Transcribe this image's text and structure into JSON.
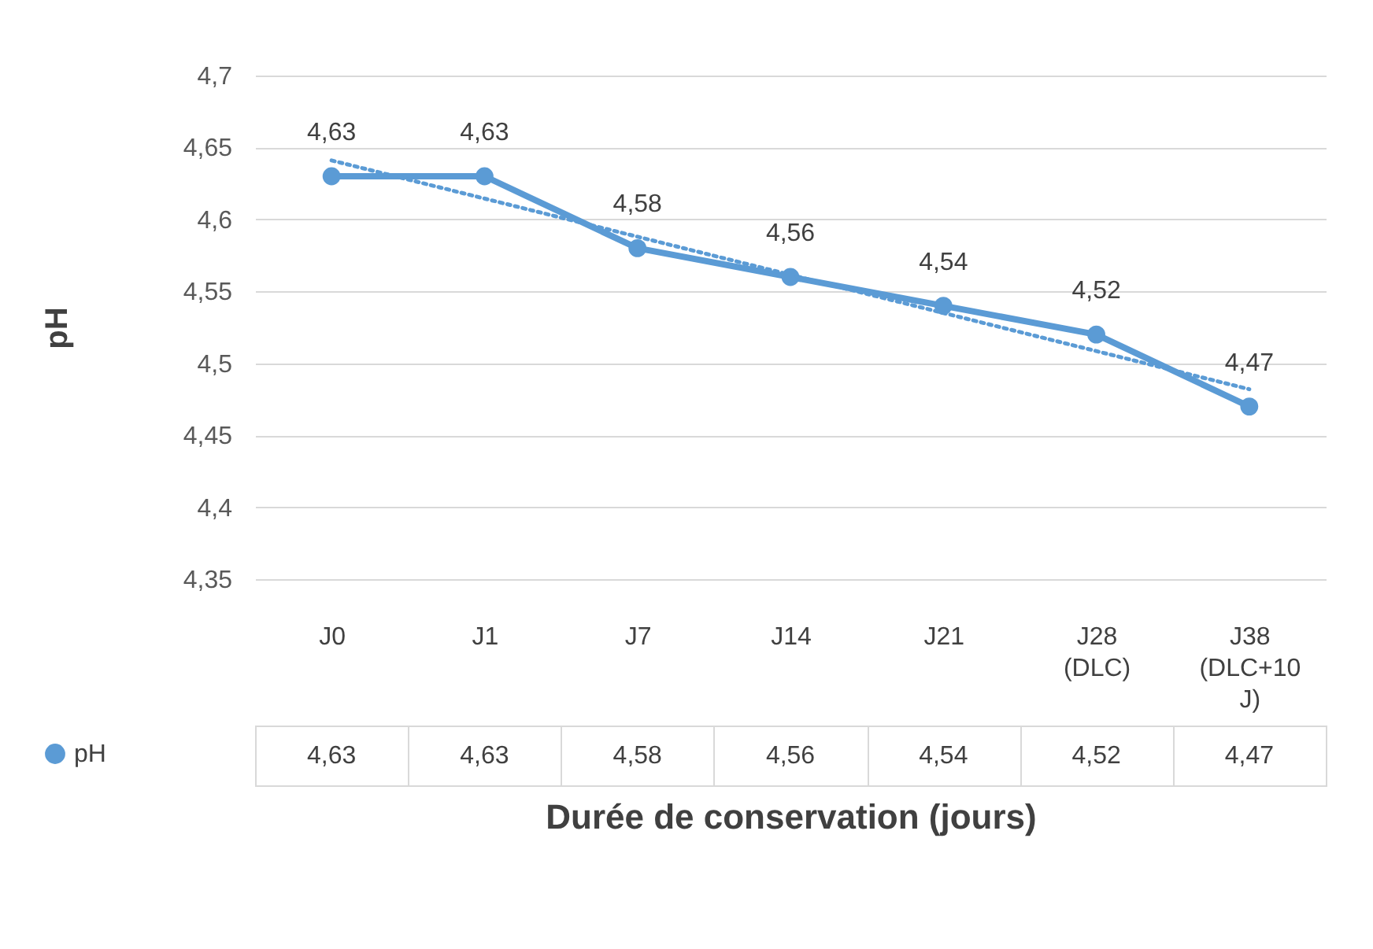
{
  "chart_data": {
    "type": "line",
    "categories": [
      "J0",
      "J1",
      "J7",
      "J14",
      "J21",
      "J28 (DLC)",
      "J38 (DLC+10 J)"
    ],
    "series": [
      {
        "name": "pH",
        "color": "#5b9bd5",
        "values": [
          4.63,
          4.63,
          4.58,
          4.56,
          4.54,
          4.52,
          4.47
        ],
        "value_labels": [
          "4,63",
          "4,63",
          "4,58",
          "4,56",
          "4,54",
          "4,52",
          "4,47"
        ],
        "marker": "circle",
        "line_style": "solid"
      },
      {
        "type": "line",
        "color": "#5b9bd5",
        "x": [
          "J0",
          "J38 (DLC+10 J)"
        ],
        "values": [
          4.641,
          4.482
        ],
        "marker": "none",
        "line_style": "dotted"
      }
    ],
    "ylabel": "pH",
    "xlabel": "Durée  de conservation (jours)",
    "ylim": [
      4.35,
      4.7
    ],
    "yticks": [
      {
        "value": 4.35,
        "label": "4,35"
      },
      {
        "value": 4.4,
        "label": "4,4"
      },
      {
        "value": 4.45,
        "label": "4,45"
      },
      {
        "value": 4.5,
        "label": "4,5"
      },
      {
        "value": 4.55,
        "label": "4,55"
      },
      {
        "value": 4.6,
        "label": "4,6"
      },
      {
        "value": 4.65,
        "label": "4,65"
      },
      {
        "value": 4.7,
        "label": "4,7"
      }
    ],
    "grid": "y",
    "legend": "bottom left"
  }
}
